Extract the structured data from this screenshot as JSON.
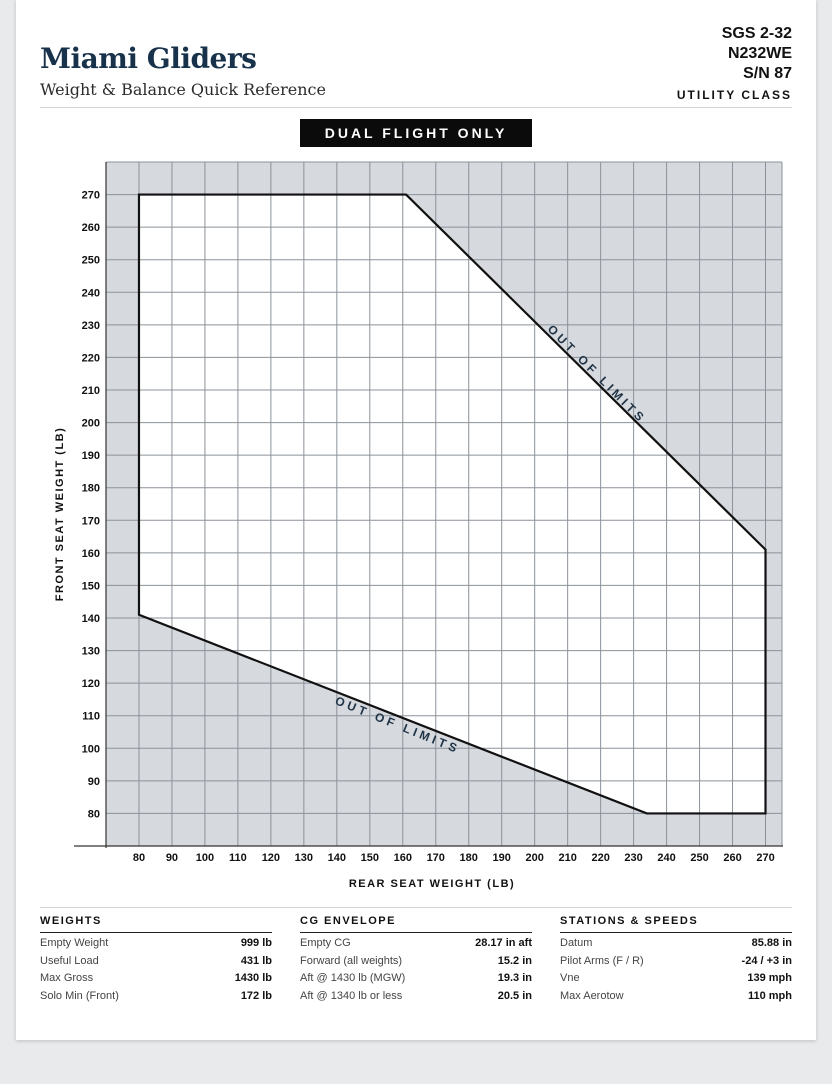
{
  "header": {
    "brand": "Miami Gliders",
    "subtitle": "Weight & Balance Quick Reference",
    "model": "SGS 2-32",
    "registration": "N232WE",
    "serial": "S/N 87",
    "category": "UTILITY CLASS"
  },
  "banner": "DUAL FLIGHT ONLY",
  "chart_data": {
    "type": "area",
    "xlabel": "REAR SEAT WEIGHT (LB)",
    "ylabel": "FRONT SEAT WEIGHT (LB)",
    "xlim": [
      70,
      275
    ],
    "ylim": [
      70,
      280
    ],
    "x_ticks": [
      80,
      90,
      100,
      110,
      120,
      130,
      140,
      150,
      160,
      170,
      180,
      190,
      200,
      210,
      220,
      230,
      240,
      250,
      260,
      270
    ],
    "y_ticks": [
      80,
      90,
      100,
      110,
      120,
      130,
      140,
      150,
      160,
      170,
      180,
      190,
      200,
      210,
      220,
      230,
      240,
      250,
      260,
      270
    ],
    "grid": true,
    "envelope": {
      "x": [
        80,
        161,
        270,
        270,
        234,
        80
      ],
      "y": [
        270,
        270,
        161,
        80,
        80,
        141
      ]
    },
    "annotations": [
      {
        "text": "OUT OF LIMITS",
        "at_x": 218,
        "at_y": 214,
        "angle_deg": 45
      },
      {
        "text": "OUT OF LIMITS",
        "at_x": 158,
        "at_y": 106,
        "angle_deg": 22
      }
    ],
    "colors": {
      "outside": "#d6d9de",
      "inside": "#ffffff",
      "grid": "#8b929a",
      "outline": "#111111",
      "annotation": "#1f3346"
    }
  },
  "weights": {
    "title": "WEIGHTS",
    "rows": [
      {
        "label": "Empty Weight",
        "value": "999 lb"
      },
      {
        "label": "Useful Load",
        "value": "431 lb"
      },
      {
        "label": "Max Gross",
        "value": "1430 lb"
      },
      {
        "label": "Solo Min (Front)",
        "value": "172 lb"
      }
    ]
  },
  "cg": {
    "title": "CG ENVELOPE",
    "rows": [
      {
        "label": "Empty CG",
        "value": "28.17 in aft"
      },
      {
        "label": "Forward (all weights)",
        "value": "15.2 in"
      },
      {
        "label": "Aft @ 1430 lb (MGW)",
        "value": "19.3 in"
      },
      {
        "label": "Aft @ 1340 lb or less",
        "value": "20.5 in"
      }
    ]
  },
  "stations": {
    "title": "STATIONS & SPEEDS",
    "rows": [
      {
        "label": "Datum",
        "value": "85.88 in"
      },
      {
        "label": "Pilot Arms (F / R)",
        "value": "-24 / +3 in"
      },
      {
        "label": "Vne",
        "value": "139 mph"
      },
      {
        "label": "Max Aerotow",
        "value": "110 mph"
      }
    ]
  }
}
